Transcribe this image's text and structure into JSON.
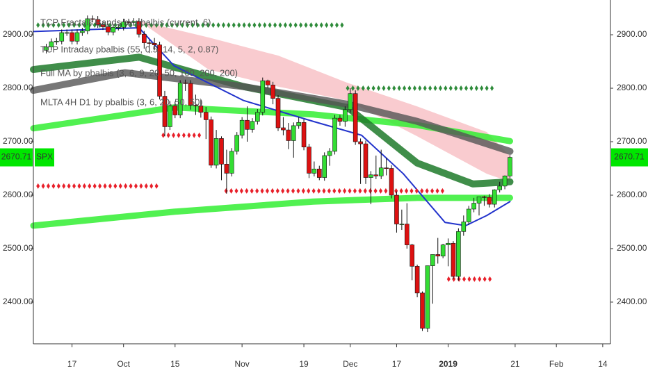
{
  "chart_data": {
    "type": "candlestick",
    "symbol": "SPX",
    "last_price": 2670.71,
    "last_price_color": "#00e600",
    "indicators": [
      "TCP Fractals Bands by pbalbis (current, 6)",
      "TCP Intraday pbalbis (55, 0.5, 14, 5, 2, 0.87)",
      "Full MA by pbalbis (3, 6, 9, 20, 50, 100, 200, 200)",
      "MLTA 4H D1 by pbalbis (3, 6, 20, 50, 50)"
    ],
    "up_color": "#33dd33",
    "down_color": "#dd1111",
    "xlim": [
      -2.5,
      109.5
    ],
    "xticks": [
      {
        "value": 5,
        "label": "17"
      },
      {
        "value": 15,
        "label": "Oct"
      },
      {
        "value": 25,
        "label": "15"
      },
      {
        "value": 38,
        "label": "Nov"
      },
      {
        "value": 50,
        "label": "19"
      },
      {
        "value": 59,
        "label": "Dec"
      },
      {
        "value": 68,
        "label": "17"
      },
      {
        "value": 78,
        "label": "2019"
      },
      {
        "value": 91,
        "label": "21"
      },
      {
        "value": 99,
        "label": "Feb"
      },
      {
        "value": 108,
        "label": "14"
      }
    ],
    "ylim": [
      2322,
      2965
    ],
    "yticks": [
      {
        "value": 2400,
        "label": "2400.00"
      },
      {
        "value": 2500,
        "label": "2500.00"
      },
      {
        "value": 2600,
        "label": "2600.00"
      },
      {
        "value": 2700,
        "label": "2700.00"
      },
      {
        "value": 2800,
        "label": "2800.00"
      },
      {
        "value": 2900,
        "label": "2900.00"
      }
    ],
    "x": [
      0,
      1,
      2,
      3,
      4,
      5,
      6,
      7,
      8,
      9,
      10,
      11,
      12,
      13,
      14,
      15,
      16,
      17,
      18,
      19,
      20,
      21,
      22,
      23,
      24,
      25,
      26,
      27,
      28,
      29,
      30,
      31,
      32,
      33,
      34,
      35,
      36,
      37,
      38,
      39,
      40,
      41,
      42,
      43,
      44,
      45,
      46,
      47,
      48,
      49,
      50,
      51,
      52,
      53,
      54,
      55,
      56,
      57,
      58,
      59,
      60,
      61,
      62,
      63,
      64,
      65,
      66,
      67,
      68,
      69,
      70,
      71,
      72,
      73,
      74,
      75,
      76,
      77,
      78,
      79,
      80,
      81,
      82,
      83,
      84,
      85,
      86,
      87,
      88,
      89,
      90
    ],
    "open": [
      2871,
      2877,
      2887,
      2888,
      2904,
      2904,
      2888,
      2904,
      2907,
      2930,
      2929,
      2919,
      2915,
      2905,
      2914,
      2914,
      2924,
      2923,
      2925,
      2901,
      2885,
      2884,
      2881,
      2785,
      2728,
      2767,
      2750,
      2810,
      2809,
      2768,
      2767,
      2755,
      2741,
      2656,
      2706,
      2658,
      2641,
      2682,
      2712,
      2740,
      2723,
      2738,
      2755,
      2814,
      2806,
      2781,
      2726,
      2722,
      2702,
      2730,
      2736,
      2690,
      2641,
      2649,
      2633,
      2674,
      2682,
      2744,
      2738,
      2760,
      2790,
      2700,
      2696,
      2633,
      2638,
      2636,
      2651,
      2650,
      2600,
      2546,
      2546,
      2507,
      2467,
      2417,
      2351,
      2468,
      2489,
      2486,
      2507,
      2510,
      2448,
      2532,
      2550,
      2574,
      2585,
      2597,
      2596,
      2583,
      2610,
      2617,
      2636
    ],
    "high": [
      2883,
      2893,
      2894,
      2910,
      2910,
      2910,
      2910,
      2913,
      2936,
      2936,
      2935,
      2925,
      2921,
      2920,
      2920,
      2930,
      2930,
      2931,
      2931,
      2907,
      2891,
      2894,
      2887,
      2795,
      2776,
      2775,
      2815,
      2816,
      2815,
      2788,
      2778,
      2765,
      2747,
      2722,
      2710,
      2685,
      2688,
      2718,
      2746,
      2766,
      2744,
      2761,
      2820,
      2816,
      2812,
      2787,
      2746,
      2735,
      2736,
      2746,
      2742,
      2696,
      2663,
      2655,
      2680,
      2688,
      2750,
      2750,
      2766,
      2800,
      2796,
      2706,
      2702,
      2645,
      2674,
      2685,
      2670,
      2656,
      2607,
      2573,
      2585,
      2509,
      2470,
      2420,
      2468,
      2489,
      2520,
      2509,
      2519,
      2514,
      2538,
      2562,
      2580,
      2595,
      2597,
      2599,
      2602,
      2611,
      2625,
      2637,
      2675
    ],
    "low": [
      2865,
      2871,
      2881,
      2882,
      2898,
      2882,
      2882,
      2898,
      2901,
      2923,
      2913,
      2909,
      2899,
      2899,
      2908,
      2908,
      2917,
      2917,
      2895,
      2874,
      2866,
      2871,
      2779,
      2710,
      2722,
      2744,
      2744,
      2795,
      2760,
      2750,
      2745,
      2705,
      2651,
      2650,
      2628,
      2603,
      2635,
      2676,
      2706,
      2700,
      2717,
      2732,
      2749,
      2800,
      2770,
      2720,
      2712,
      2686,
      2670,
      2724,
      2684,
      2632,
      2635,
      2628,
      2627,
      2655,
      2676,
      2730,
      2728,
      2754,
      2694,
      2621,
      2621,
      2583,
      2630,
      2630,
      2637,
      2594,
      2530,
      2535,
      2500,
      2441,
      2409,
      2346,
      2344,
      2397,
      2472,
      2482,
      2467,
      2443,
      2440,
      2524,
      2544,
      2568,
      2562,
      2580,
      2577,
      2577,
      2605,
      2611,
      2632
    ],
    "close": [
      2877,
      2887,
      2888,
      2904,
      2904,
      2888,
      2904,
      2907,
      2930,
      2929,
      2919,
      2915,
      2905,
      2914,
      2914,
      2924,
      2923,
      2925,
      2901,
      2885,
      2884,
      2881,
      2785,
      2728,
      2767,
      2750,
      2810,
      2809,
      2768,
      2767,
      2755,
      2741,
      2656,
      2706,
      2658,
      2641,
      2682,
      2712,
      2740,
      2723,
      2738,
      2755,
      2814,
      2806,
      2781,
      2726,
      2722,
      2702,
      2730,
      2736,
      2690,
      2641,
      2649,
      2633,
      2674,
      2682,
      2744,
      2738,
      2760,
      2790,
      2700,
      2696,
      2633,
      2638,
      2636,
      2651,
      2650,
      2600,
      2546,
      2546,
      2507,
      2467,
      2417,
      2351,
      2468,
      2489,
      2486,
      2507,
      2510,
      2448,
      2532,
      2550,
      2574,
      2585,
      2597,
      2596,
      2583,
      2610,
      2617,
      2636,
      2670.71
    ],
    "band": {
      "color": "#f4a0a8",
      "x": [
        18,
        31.5,
        45,
        58.5,
        72,
        85.5,
        90
      ],
      "upper": [
        2926,
        2895,
        2861,
        2810,
        2766,
        2718,
        2673
      ],
      "lower": [
        2926,
        2835,
        2803,
        2777,
        2710,
        2640,
        2625
      ]
    },
    "overlays": [
      {
        "color": "#33ee33",
        "width": 9,
        "opacity": 0.85,
        "x": [
          -2.5,
          24.8,
          51.8,
          72,
          90
        ],
        "values": [
          2725,
          2764,
          2751,
          2731,
          2701
        ]
      },
      {
        "color": "#33ee33",
        "width": 9,
        "opacity": 0.85,
        "x": [
          -2.5,
          24.8,
          51.8,
          72,
          90
        ],
        "values": [
          2543,
          2569,
          2588,
          2595,
          2595
        ]
      },
      {
        "color": "#1f7a2a",
        "width": 10,
        "opacity": 0.85,
        "x": [
          -2.5,
          18,
          38.3,
          58.5,
          72,
          82.8,
          90
        ],
        "values": [
          2835,
          2858,
          2803,
          2764,
          2660,
          2621,
          2625
        ]
      },
      {
        "color": "#555555",
        "width": 10,
        "opacity": 0.8,
        "x": [
          -2.5,
          15.3,
          38.3,
          58.5,
          72,
          90
        ],
        "values": [
          2796,
          2829,
          2803,
          2770,
          2738,
          2682
        ]
      },
      {
        "color": "#2233cc",
        "width": 2,
        "opacity": 1,
        "x": [
          -2.5,
          18,
          24.8,
          38.3,
          51.8,
          61.2,
          69.3,
          77.4,
          81.4,
          85.5,
          90
        ],
        "values": [
          2906,
          2913,
          2842,
          2777,
          2738,
          2712,
          2640,
          2549,
          2543,
          2562,
          2588
        ]
      }
    ],
    "fractal_levels": [
      {
        "color": "#2e8b3a",
        "value": 2918,
        "x": [
          -1.6,
          57.8
        ]
      },
      {
        "color": "#2e8b3a",
        "value": 2800,
        "x": [
          58.5,
          86.8
        ]
      },
      {
        "color": "#e8202a",
        "value": 2712,
        "x": [
          22.7,
          30.2
        ]
      },
      {
        "color": "#e8202a",
        "value": 2617,
        "x": [
          -1.6,
          22.1
        ]
      },
      {
        "color": "#e8202a",
        "value": 2608,
        "x": [
          34.9,
          77.4
        ]
      },
      {
        "color": "#e8202a",
        "value": 2443,
        "x": [
          78.1,
          86.8
        ]
      }
    ]
  }
}
